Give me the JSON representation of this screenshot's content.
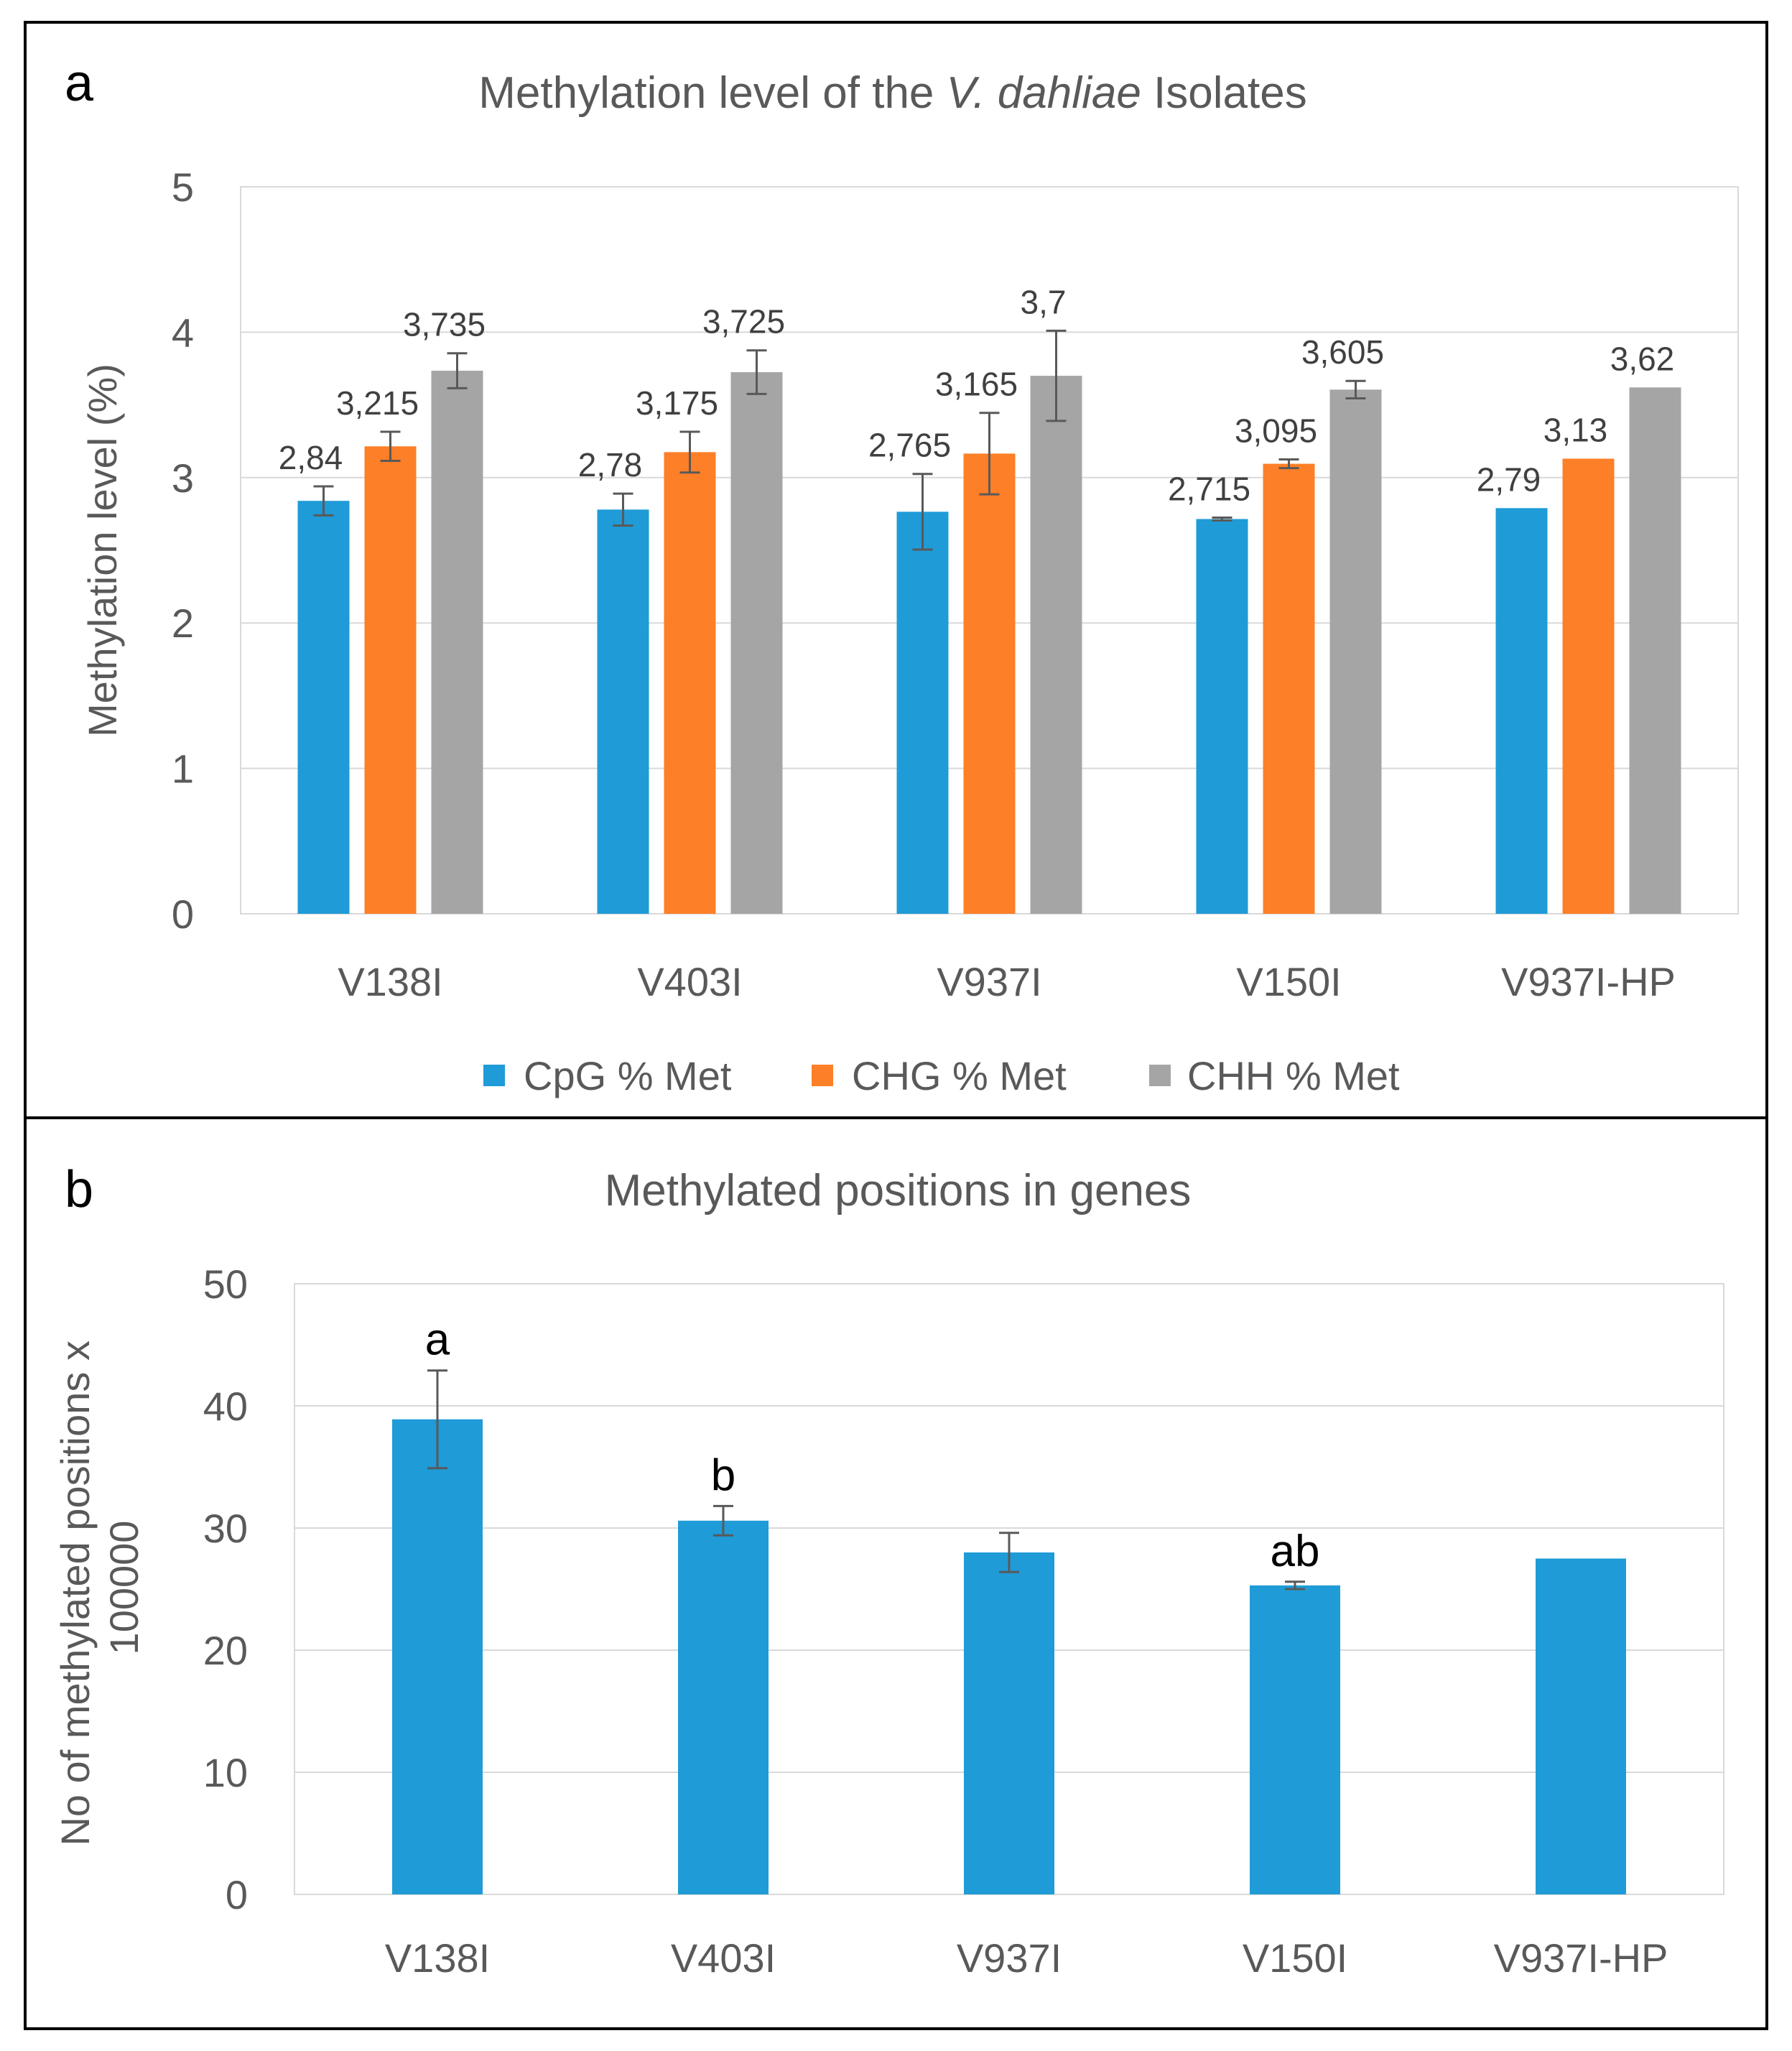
{
  "chart_data": [
    {
      "panel_letter": "a",
      "type": "bar",
      "title_parts": [
        "Methylation level of the ",
        "V. dahliae",
        " Isolates"
      ],
      "ylabel": "Methylation level (%)",
      "xlabel": "",
      "ylim": [
        0,
        5
      ],
      "yticks": [
        0,
        1,
        2,
        3,
        4,
        5
      ],
      "grid": true,
      "legend_position": "bottom",
      "categories": [
        "V138I",
        "V403I",
        "V937I",
        "V150I",
        "V937I-HP"
      ],
      "series": [
        {
          "name": "CpG % Met",
          "color": "#1f9bd7",
          "values": [
            2.84,
            2.78,
            2.765,
            2.715,
            2.79
          ],
          "labels": [
            "2,84",
            "2,78",
            "2,765",
            "2,715",
            "2,79"
          ],
          "errors": [
            0.1,
            0.11,
            0.26,
            0.01,
            0
          ]
        },
        {
          "name": "CHG % Met",
          "color": "#fd7f27",
          "values": [
            3.215,
            3.175,
            3.165,
            3.095,
            3.13
          ],
          "labels": [
            "3,215",
            "3,175",
            "3,165",
            "3,095",
            "3,13"
          ],
          "errors": [
            0.1,
            0.14,
            0.28,
            0.03,
            0
          ]
        },
        {
          "name": "CHH % Met",
          "color": "#a5a5a5",
          "values": [
            3.735,
            3.725,
            3.7,
            3.605,
            3.62
          ],
          "labels": [
            "3,735",
            "3,725",
            "3,7",
            "3,605",
            "3,62"
          ],
          "errors": [
            0.12,
            0.15,
            0.31,
            0.06,
            0
          ]
        }
      ]
    },
    {
      "panel_letter": "b",
      "type": "bar",
      "title": "Methylated positions in genes",
      "ylabel_lines": [
        "No of methylated positions x",
        "100000"
      ],
      "xlabel": "",
      "ylim": [
        0,
        50
      ],
      "yticks": [
        0,
        10,
        20,
        30,
        40,
        50
      ],
      "grid": true,
      "categories": [
        "V138I",
        "V403I",
        "V937I",
        "V150I",
        "V937I-HP"
      ],
      "series": [
        {
          "name": "Methylated positions",
          "color": "#1f9bd7",
          "values": [
            38.9,
            30.6,
            28.0,
            25.3,
            27.5
          ],
          "errors": [
            4.0,
            1.2,
            1.6,
            0.3,
            0
          ]
        }
      ],
      "annotations": [
        "a",
        "b",
        "",
        "ab",
        ""
      ]
    }
  ]
}
